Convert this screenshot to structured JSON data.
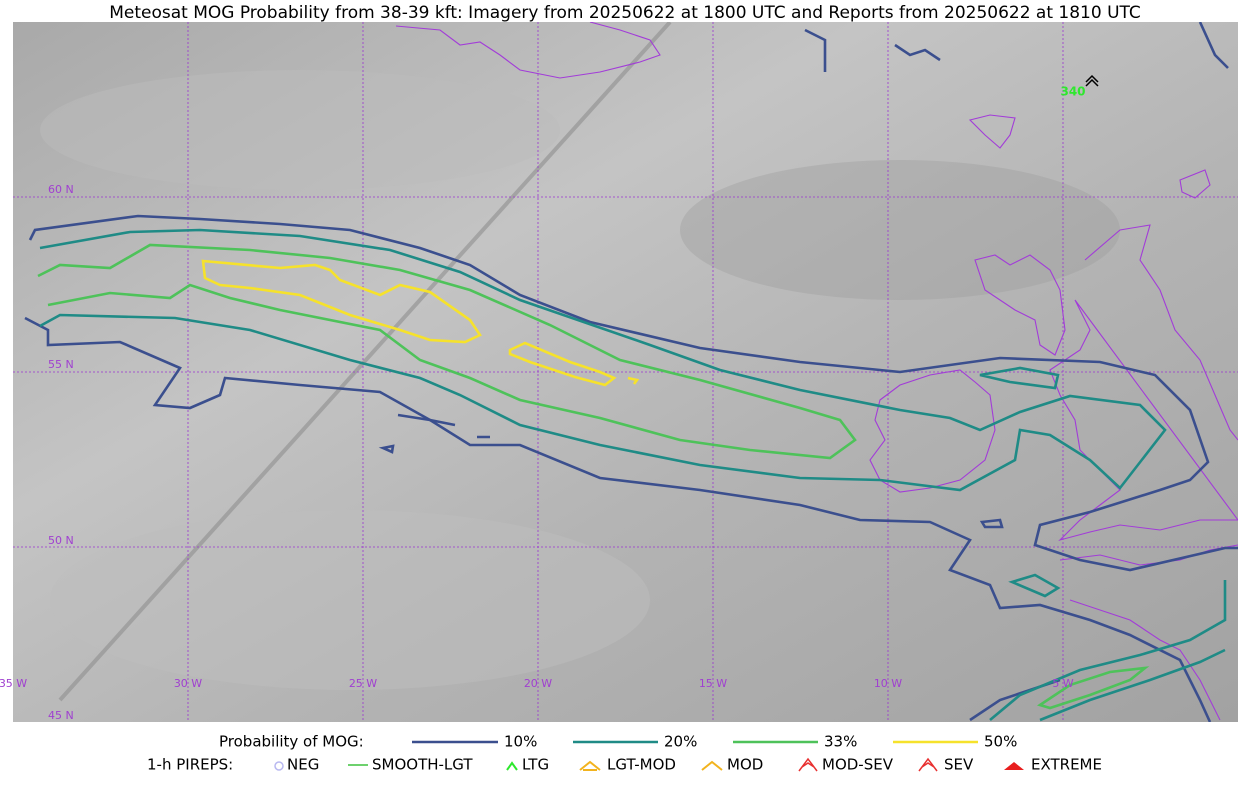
{
  "title": "Meteosat MOG Probability from 38-39 kft: Imagery from 20250622 at 1800 UTC and Reports from 20250622 at 1810 UTC",
  "map": {
    "lat_labels": [
      "60 N",
      "55 N",
      "50 N",
      "45 N"
    ],
    "lon_labels": [
      "35 W",
      "30 W",
      "25 W",
      "20 W",
      "15 W",
      "10 W",
      "5 W"
    ],
    "report_label": "340"
  },
  "legend": {
    "mog_title": "Probability of MOG:",
    "mog_items": [
      "10%",
      "20%",
      "33%",
      "50%"
    ],
    "pirep_title": "1-h PIREPS:",
    "pirep_items": [
      "NEG",
      "SMOOTH-LGT",
      "LTG",
      "LGT-MOD",
      "MOD",
      "MOD-SEV",
      "SEV",
      "EXTREME"
    ]
  }
}
